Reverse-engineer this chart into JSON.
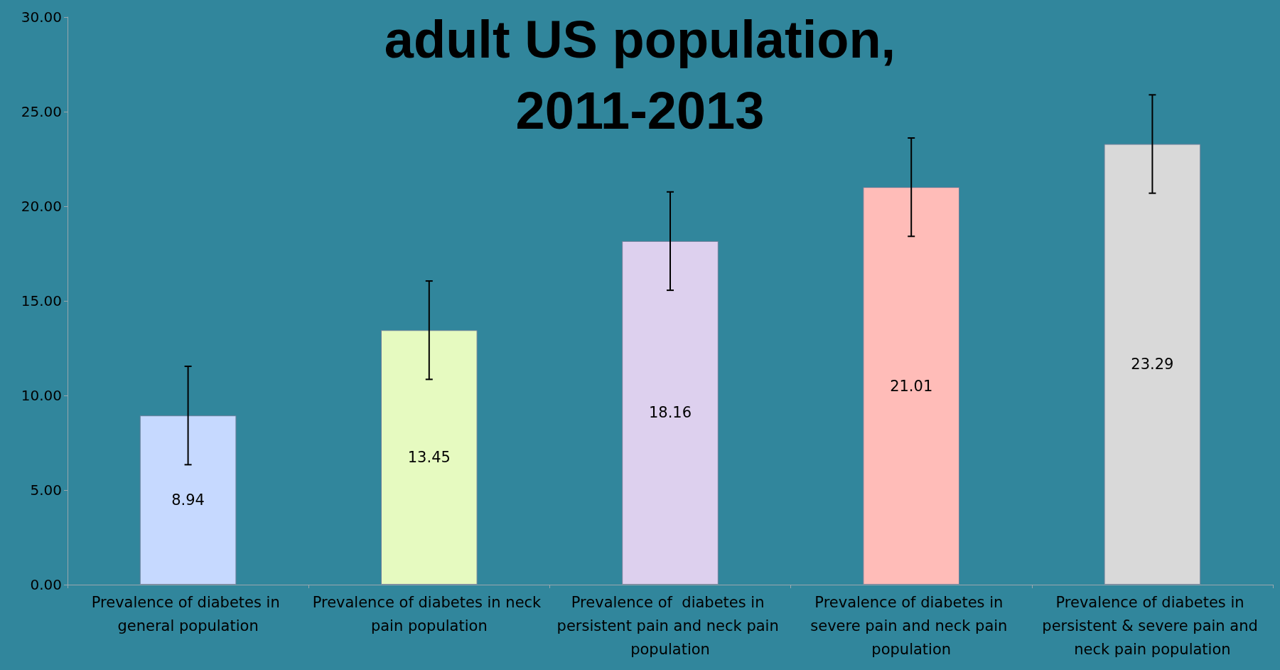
{
  "chart_data": {
    "type": "bar",
    "title": "adult US population,\n2011-2013",
    "categories": [
      "Prevalence of diabetes in general population",
      "Prevalence of diabetes in neck pain population",
      "Prevalence of  diabetes in persistent pain and neck pain population",
      "Prevalence of diabetes in severe pain and neck pain population",
      "Prevalence of diabetes in persistent & severe pain and neck pain population"
    ],
    "values": [
      8.94,
      13.45,
      18.16,
      21.01,
      23.29
    ],
    "errors": [
      2.6,
      2.6,
      2.6,
      2.6,
      2.6
    ],
    "colors": [
      "#c6d9ff",
      "#e6fac0",
      "#ddd0ee",
      "#ffbcb8",
      "#d9d9d9"
    ],
    "ylim": [
      0,
      30
    ],
    "yticks": [
      {
        "value": 0,
        "label": "0.00"
      },
      {
        "value": 5,
        "label": "5.00"
      },
      {
        "value": 10,
        "label": "10.00"
      },
      {
        "value": 15,
        "label": "15.00"
      },
      {
        "value": 20,
        "label": "20.00"
      },
      {
        "value": 25,
        "label": "25.00"
      },
      {
        "value": 30,
        "label": "30.00"
      }
    ],
    "data_labels": true,
    "grid": false
  }
}
